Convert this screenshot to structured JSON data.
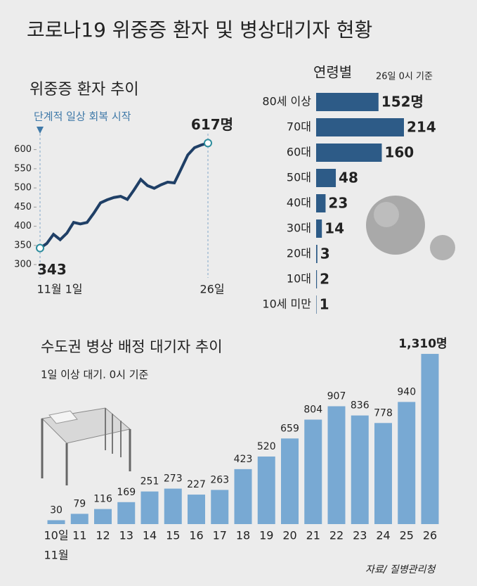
{
  "title": "코로나19 위중증 환자 및 병상대기자 현황",
  "source": "자료/ 질병관리청",
  "chart_data": [
    {
      "type": "line",
      "title": "위중증 환자 추이",
      "annotation": "단계적 일상 회복 시작",
      "categories": [
        "11월 1일",
        null,
        null,
        null,
        null,
        null,
        null,
        null,
        null,
        null,
        null,
        null,
        null,
        null,
        null,
        null,
        null,
        null,
        null,
        null,
        null,
        null,
        null,
        null,
        null,
        "26일"
      ],
      "values": [
        343,
        355,
        379,
        365,
        382,
        410,
        406,
        410,
        434,
        461,
        469,
        475,
        478,
        470,
        495,
        522,
        506,
        499,
        508,
        515,
        513,
        549,
        586,
        605,
        612,
        617
      ],
      "value_labels": [
        "343",
        null,
        null,
        null,
        null,
        null,
        null,
        null,
        null,
        null,
        null,
        null,
        null,
        null,
        null,
        null,
        null,
        null,
        null,
        null,
        null,
        null,
        null,
        null,
        null,
        "617명"
      ],
      "color": "#1f3f66",
      "ylim": [
        280,
        625
      ],
      "yticks": [
        300,
        350,
        400,
        450,
        500,
        550,
        600
      ]
    },
    {
      "type": "hbar",
      "title": "연령별",
      "subtitle": "26일 0시 기준",
      "categories": [
        "80세 이상",
        "70대",
        "60대",
        "50대",
        "40대",
        "30대",
        "20대",
        "10대",
        "10세 미만"
      ],
      "values": [
        152,
        214,
        160,
        48,
        23,
        14,
        3,
        2,
        1
      ],
      "value_labels": [
        "152명",
        "214",
        "160",
        "48",
        "23",
        "14",
        "3",
        "2",
        "1"
      ],
      "color": "#2d5b87"
    },
    {
      "type": "bar",
      "title": "수도권 병상 배정 대기자 추이",
      "subtitle": "1일 이상 대기. 0시 기준",
      "categories": [
        "10일",
        "11",
        "12",
        "13",
        "14",
        "15",
        "16",
        "17",
        "18",
        "19",
        "20",
        "21",
        "22",
        "23",
        "24",
        "25",
        "26"
      ],
      "month_label": "11월",
      "values": [
        30,
        79,
        116,
        169,
        251,
        273,
        227,
        263,
        423,
        520,
        659,
        804,
        907,
        836,
        778,
        940,
        1310
      ],
      "value_labels": [
        "30",
        "79",
        "116",
        "169",
        "251",
        "273",
        "227",
        "263",
        "423",
        "520",
        "659",
        "804",
        "907",
        "836",
        "778",
        "940",
        "1,310명"
      ],
      "color": "#78a9d3"
    }
  ]
}
